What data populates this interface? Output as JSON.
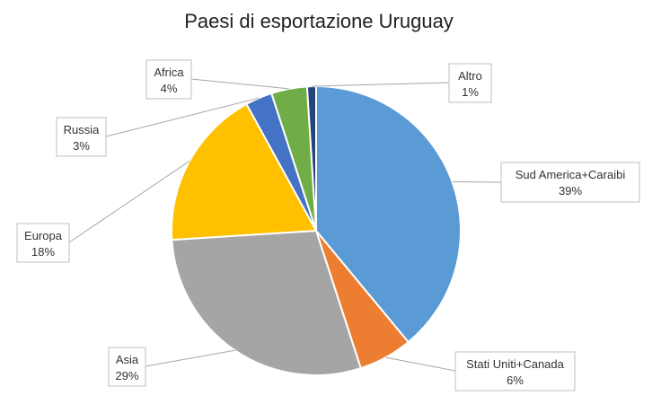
{
  "chart_data": {
    "type": "pie",
    "title": "Paesi di esportazione Uruguay",
    "legend": "none",
    "slices": [
      {
        "label": "Sud America+Caraibi",
        "value": 39,
        "value_label": "39%",
        "color": "#5b9bd5"
      },
      {
        "label": "Stati Uniti+Canada",
        "value": 6,
        "value_label": "6%",
        "color": "#ed7d31"
      },
      {
        "label": "Asia",
        "value": 29,
        "value_label": "29%",
        "color": "#a5a5a5"
      },
      {
        "label": "Europa",
        "value": 18,
        "value_label": "18%",
        "color": "#ffc000"
      },
      {
        "label": "Russia",
        "value": 3,
        "value_label": "3%",
        "color": "#4472c4"
      },
      {
        "label": "Africa",
        "value": 4,
        "value_label": "4%",
        "color": "#70ad47"
      },
      {
        "label": "Altro",
        "value": 1,
        "value_label": "1%",
        "color": "#264478"
      }
    ]
  }
}
